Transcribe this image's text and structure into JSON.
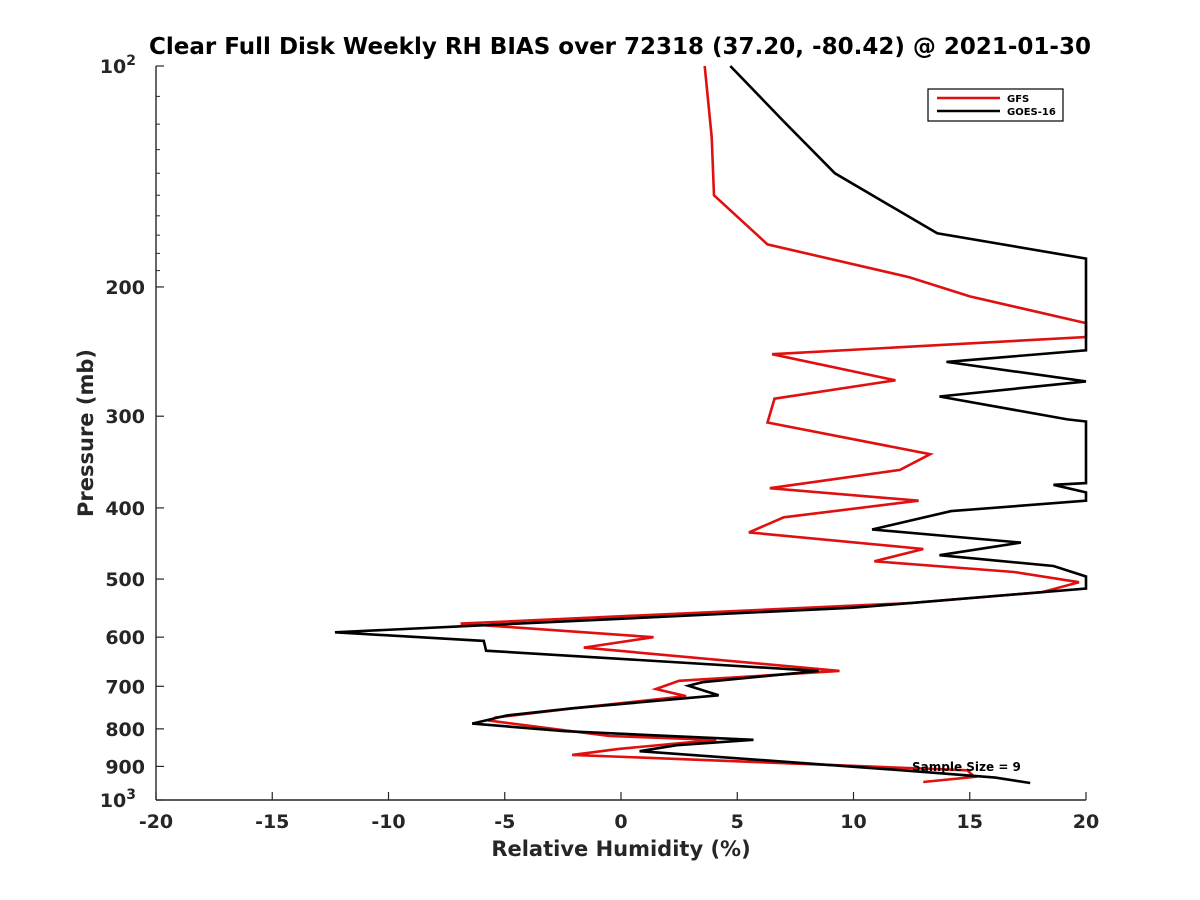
{
  "chart_data": {
    "type": "line",
    "title": "Clear Full Disk Weekly RH BIAS over 72318 (37.20, -80.42) @ 2021-01-30",
    "xlabel": "Relative Humidity (%)",
    "ylabel": "Pressure (mb)",
    "xlim": [
      -20,
      20
    ],
    "ylim": [
      100,
      1000
    ],
    "yscale": "log",
    "y_reversed": true,
    "x_ticks": [
      "-20",
      "-15",
      "-10",
      "-5",
      "0",
      "5",
      "10",
      "15",
      "20"
    ],
    "y_ticks": [
      {
        "value": 100,
        "base": "10",
        "exp": "2"
      },
      {
        "value": 200,
        "base": "200",
        "exp": ""
      },
      {
        "value": 300,
        "base": "300",
        "exp": ""
      },
      {
        "value": 400,
        "base": "400",
        "exp": ""
      },
      {
        "value": 500,
        "base": "500",
        "exp": ""
      },
      {
        "value": 600,
        "base": "600",
        "exp": ""
      },
      {
        "value": 700,
        "base": "700",
        "exp": ""
      },
      {
        "value": 800,
        "base": "800",
        "exp": ""
      },
      {
        "value": 900,
        "base": "900",
        "exp": ""
      },
      {
        "value": 1000,
        "base": "10",
        "exp": "3"
      }
    ],
    "grid": false,
    "legend_position": "top-right",
    "annotation": "Sample Size = 9",
    "series": [
      {
        "name": "GFS",
        "color": "#e01010",
        "points": [
          [
            3.6,
            100
          ],
          [
            3.9,
            125
          ],
          [
            4.0,
            150
          ],
          [
            6.3,
            175
          ],
          [
            12.4,
            194
          ],
          [
            15.0,
            206
          ],
          [
            20.0,
            224
          ],
          [
            20.0,
            234
          ],
          [
            6.5,
            247
          ],
          [
            11.8,
            268
          ],
          [
            6.6,
            284
          ],
          [
            6.3,
            306
          ],
          [
            13.3,
            338
          ],
          [
            12.0,
            355
          ],
          [
            6.4,
            376
          ],
          [
            12.8,
            391
          ],
          [
            7.0,
            412
          ],
          [
            5.5,
            432
          ],
          [
            13.0,
            455
          ],
          [
            10.9,
            473
          ],
          [
            16.9,
            489
          ],
          [
            19.7,
            505
          ],
          [
            18.1,
            521
          ],
          [
            12.5,
            539
          ],
          [
            -6.9,
            575
          ],
          [
            1.4,
            600
          ],
          [
            -1.6,
            620
          ],
          [
            9.4,
            667
          ],
          [
            2.5,
            688
          ],
          [
            1.5,
            706
          ],
          [
            2.8,
            722
          ],
          [
            -2.2,
            751
          ],
          [
            -5.4,
            772
          ],
          [
            -5.6,
            780
          ],
          [
            -0.5,
            818
          ],
          [
            4.1,
            828
          ],
          [
            -0.1,
            852
          ],
          [
            -2.1,
            868
          ],
          [
            14.9,
            911
          ],
          [
            15.2,
            930
          ],
          [
            13.0,
            945
          ]
        ]
      },
      {
        "name": "GOES-16",
        "color": "#000000",
        "points": [
          [
            4.7,
            100
          ],
          [
            7.0,
            119
          ],
          [
            9.2,
            140
          ],
          [
            13.6,
            169
          ],
          [
            20.0,
            183
          ],
          [
            20.0,
            244
          ],
          [
            14.0,
            253
          ],
          [
            20.0,
            269
          ],
          [
            13.7,
            282
          ],
          [
            19.2,
            303
          ],
          [
            20.0,
            305
          ],
          [
            20.0,
            370
          ],
          [
            18.6,
            372
          ],
          [
            20.0,
            381
          ],
          [
            20.0,
            391
          ],
          [
            14.2,
            404
          ],
          [
            10.8,
            428
          ],
          [
            17.2,
            446
          ],
          [
            13.7,
            464
          ],
          [
            18.6,
            480
          ],
          [
            20.0,
            496
          ],
          [
            20.0,
            515
          ],
          [
            10.0,
            547
          ],
          [
            -12.3,
            591
          ],
          [
            -5.9,
            607
          ],
          [
            -5.8,
            626
          ],
          [
            8.5,
            667
          ],
          [
            3.5,
            691
          ],
          [
            2.9,
            699
          ],
          [
            4.2,
            720
          ],
          [
            -2.1,
            750
          ],
          [
            -4.9,
            767
          ],
          [
            -6.4,
            787
          ],
          [
            -2.4,
            806
          ],
          [
            5.7,
            828
          ],
          [
            2.4,
            842
          ],
          [
            0.8,
            858
          ],
          [
            12.1,
            911
          ],
          [
            16.1,
            932
          ],
          [
            17.6,
            948
          ]
        ]
      }
    ]
  }
}
